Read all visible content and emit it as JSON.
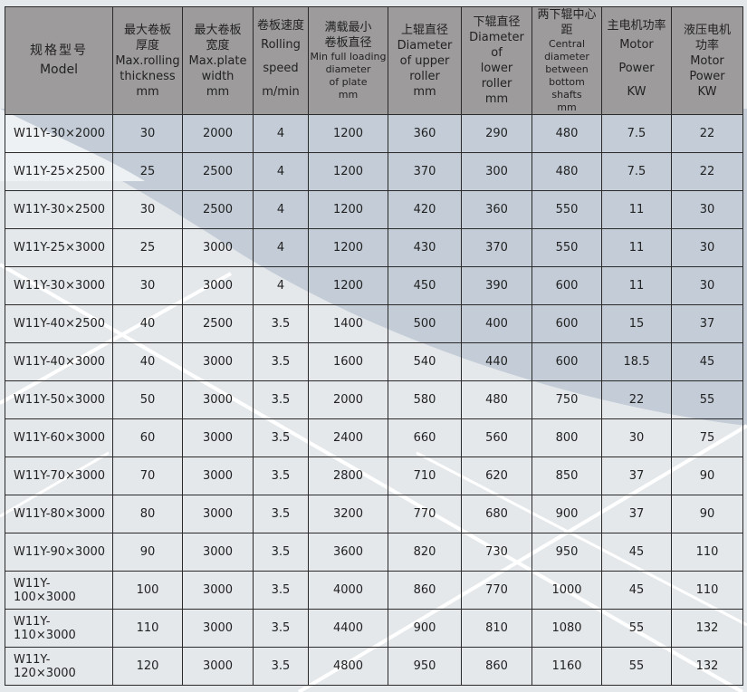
{
  "table": {
    "headers": [
      {
        "cn": "规格型号",
        "en": [
          "Model"
        ]
      },
      {
        "cn": "最大卷板厚度",
        "en": [
          "Max.rolling",
          "thickness",
          "mm"
        ]
      },
      {
        "cn": "最大卷板宽度",
        "en": [
          "Max.plate",
          "width",
          "mm"
        ]
      },
      {
        "cn": "卷板速度",
        "en": [
          "Rolling",
          "speed",
          "m/min"
        ]
      },
      {
        "cn": "满载最小卷板直径",
        "en": [
          "Min full loading",
          "diameter",
          "of plate",
          "mm"
        ]
      },
      {
        "cn": "上辊直径",
        "en": [
          "Diameter",
          "of upper",
          "roller",
          "mm"
        ]
      },
      {
        "cn": "下辊直径",
        "en": [
          "Diameter",
          "of",
          "lower",
          "roller",
          "mm"
        ]
      },
      {
        "cn": "两下辊中心距",
        "en": [
          "Central",
          "diameter",
          "between",
          "bottom shafts",
          "mm"
        ]
      },
      {
        "cn": "主电机功率",
        "en": [
          "Motor",
          "Power",
          "KW"
        ]
      },
      {
        "cn": "液压电机功率",
        "en": [
          "Motor",
          "Power",
          "KW"
        ]
      }
    ],
    "rows": [
      [
        "W11Y-30×2000",
        "30",
        "2000",
        "4",
        "1200",
        "360",
        "290",
        "480",
        "7.5",
        "22"
      ],
      [
        "W11Y-25×2500",
        "25",
        "2500",
        "4",
        "1200",
        "370",
        "300",
        "480",
        "7.5",
        "22"
      ],
      [
        "W11Y-30×2500",
        "30",
        "2500",
        "4",
        "1200",
        "420",
        "360",
        "550",
        "11",
        "30"
      ],
      [
        "W11Y-25×3000",
        "25",
        "3000",
        "4",
        "1200",
        "430",
        "370",
        "550",
        "11",
        "30"
      ],
      [
        "W11Y-30×3000",
        "30",
        "3000",
        "4",
        "1200",
        "450",
        "390",
        "600",
        "11",
        "30"
      ],
      [
        "W11Y-40×2500",
        "40",
        "2500",
        "3.5",
        "1400",
        "500",
        "400",
        "600",
        "15",
        "37"
      ],
      [
        "W11Y-40×3000",
        "40",
        "3000",
        "3.5",
        "1600",
        "540",
        "440",
        "600",
        "18.5",
        "45"
      ],
      [
        "W11Y-50×3000",
        "50",
        "3000",
        "3.5",
        "2000",
        "580",
        "480",
        "750",
        "22",
        "55"
      ],
      [
        "W11Y-60×3000",
        "60",
        "3000",
        "3.5",
        "2400",
        "660",
        "560",
        "800",
        "30",
        "75"
      ],
      [
        "W11Y-70×3000",
        "70",
        "3000",
        "3.5",
        "2800",
        "710",
        "620",
        "850",
        "37",
        "90"
      ],
      [
        "W11Y-80×3000",
        "80",
        "3000",
        "3.5",
        "3200",
        "770",
        "680",
        "900",
        "37",
        "90"
      ],
      [
        "W11Y-90×3000",
        "90",
        "3000",
        "3.5",
        "3600",
        "820",
        "730",
        "950",
        "45",
        "110"
      ],
      [
        "W11Y-100×3000",
        "100",
        "3000",
        "3.5",
        "4000",
        "860",
        "770",
        "1000",
        "45",
        "110"
      ],
      [
        "W11Y-110×3000",
        "110",
        "3000",
        "3.5",
        "4400",
        "900",
        "810",
        "1080",
        "55",
        "132"
      ],
      [
        "W11Y-120×3000",
        "120",
        "3000",
        "3.5",
        "4800",
        "950",
        "860",
        "1160",
        "55",
        "132"
      ]
    ]
  },
  "colors": {
    "header_bg": "#9d9b9c",
    "background": "#e4e8eb",
    "accent_region": "#c3ccd7"
  }
}
